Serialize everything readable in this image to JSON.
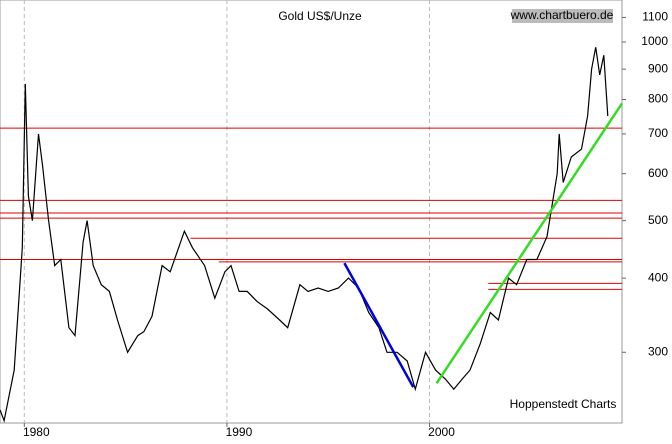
{
  "chart_data": {
    "type": "line",
    "title": "Gold US$/Unze",
    "source": "www.chartbuero.de",
    "credit": "Hoppenstedt Charts",
    "log_y": true,
    "grid": true,
    "xlim": [
      1978.8,
      2009.5
    ],
    "xticks": [
      1980,
      1990,
      2000
    ],
    "ylim": [
      228,
      1177
    ],
    "yticks": [
      300,
      400,
      500,
      600,
      700,
      800,
      900,
      1000,
      1100
    ],
    "series": [
      {
        "color": "#000000",
        "x": [
          1978.8,
          1979.0,
          1979.5,
          1979.9,
          1980.05,
          1980.2,
          1980.4,
          1980.7,
          1980.9,
          1981.2,
          1981.5,
          1981.8,
          1982.2,
          1982.5,
          1982.9,
          1983.1,
          1983.4,
          1983.8,
          1984.2,
          1984.6,
          1985.1,
          1985.6,
          1985.9,
          1986.3,
          1986.8,
          1987.2,
          1987.9,
          1988.3,
          1988.9,
          1989.4,
          1989.9,
          1990.2,
          1990.6,
          1991.0,
          1991.5,
          1992.0,
          1992.6,
          1993.0,
          1993.6,
          1994.0,
          1994.5,
          1995.0,
          1995.5,
          1996.0,
          1996.5,
          1997.0,
          1997.5,
          1997.9,
          1998.4,
          1998.9,
          1999.3,
          1999.8,
          2000.3,
          2000.8,
          2001.2,
          2001.6,
          2002.0,
          2002.5,
          2003.0,
          2003.4,
          2003.9,
          2004.3,
          2004.8,
          2005.3,
          2005.8,
          2006.3,
          2006.4,
          2006.6,
          2007.0,
          2007.5,
          2007.8,
          2008.0,
          2008.2,
          2008.4,
          2008.6,
          2008.8
        ],
        "values": [
          240,
          230,
          280,
          450,
          850,
          550,
          500,
          700,
          620,
          500,
          420,
          430,
          330,
          320,
          460,
          500,
          420,
          390,
          380,
          340,
          300,
          320,
          325,
          345,
          420,
          410,
          480,
          450,
          420,
          370,
          410,
          420,
          380,
          380,
          365,
          355,
          340,
          330,
          390,
          380,
          385,
          380,
          385,
          400,
          385,
          350,
          330,
          300,
          300,
          290,
          260,
          300,
          280,
          270,
          260,
          270,
          280,
          310,
          350,
          340,
          400,
          390,
          430,
          430,
          470,
          600,
          700,
          580,
          640,
          660,
          750,
          900,
          980,
          880,
          950,
          750
        ]
      }
    ],
    "levels": {
      "color": "#e00000",
      "values": [
        716,
        541,
        515,
        505,
        467,
        430,
        426,
        392,
        383
      ],
      "from": [
        1978.8,
        1978.8,
        1978.8,
        1978.8,
        1988.2,
        1978.8,
        1989.6,
        2002.9,
        2002.9
      ]
    },
    "trendlines": [
      {
        "color": "#0000dd",
        "x": [
          1995.8,
          1999.2
        ],
        "values": [
          424,
          262
        ]
      },
      {
        "color": "#33dd22",
        "x": [
          2000.35,
          2009.5
        ],
        "values": [
          266,
          788
        ]
      }
    ]
  }
}
